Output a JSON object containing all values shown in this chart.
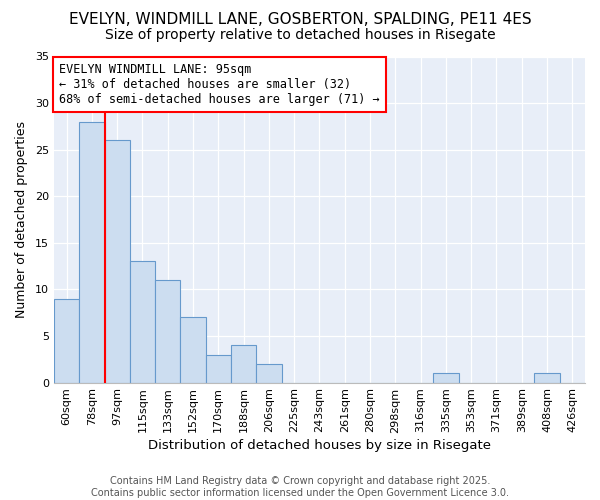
{
  "title1": "EVELYN, WINDMILL LANE, GOSBERTON, SPALDING, PE11 4ES",
  "title2": "Size of property relative to detached houses in Risegate",
  "xlabel": "Distribution of detached houses by size in Risegate",
  "ylabel": "Number of detached properties",
  "categories": [
    "60sqm",
    "78sqm",
    "97sqm",
    "115sqm",
    "133sqm",
    "152sqm",
    "170sqm",
    "188sqm",
    "206sqm",
    "225sqm",
    "243sqm",
    "261sqm",
    "280sqm",
    "298sqm",
    "316sqm",
    "335sqm",
    "353sqm",
    "371sqm",
    "389sqm",
    "408sqm",
    "426sqm"
  ],
  "values": [
    9,
    28,
    26,
    13,
    11,
    7,
    3,
    4,
    2,
    0,
    0,
    0,
    0,
    0,
    0,
    1,
    0,
    0,
    0,
    1,
    0
  ],
  "bar_color": "#ccddf0",
  "bar_edge_color": "#6699cc",
  "red_line_index": 2,
  "annotation_line1": "EVELYN WINDMILL LANE: 95sqm",
  "annotation_line2": "← 31% of detached houses are smaller (32)",
  "annotation_line3": "68% of semi-detached houses are larger (71) →",
  "annotation_box_color": "white",
  "annotation_box_edge": "red",
  "ylim": [
    0,
    35
  ],
  "yticks": [
    0,
    5,
    10,
    15,
    20,
    25,
    30,
    35
  ],
  "plot_bg_color": "#e8eef8",
  "fig_bg_color": "#ffffff",
  "grid_color": "#ffffff",
  "footer": "Contains HM Land Registry data © Crown copyright and database right 2025.\nContains public sector information licensed under the Open Government Licence 3.0.",
  "title1_fontsize": 11,
  "title2_fontsize": 10,
  "xlabel_fontsize": 9.5,
  "ylabel_fontsize": 9,
  "tick_fontsize": 8,
  "annot_fontsize": 8.5,
  "footer_fontsize": 7
}
